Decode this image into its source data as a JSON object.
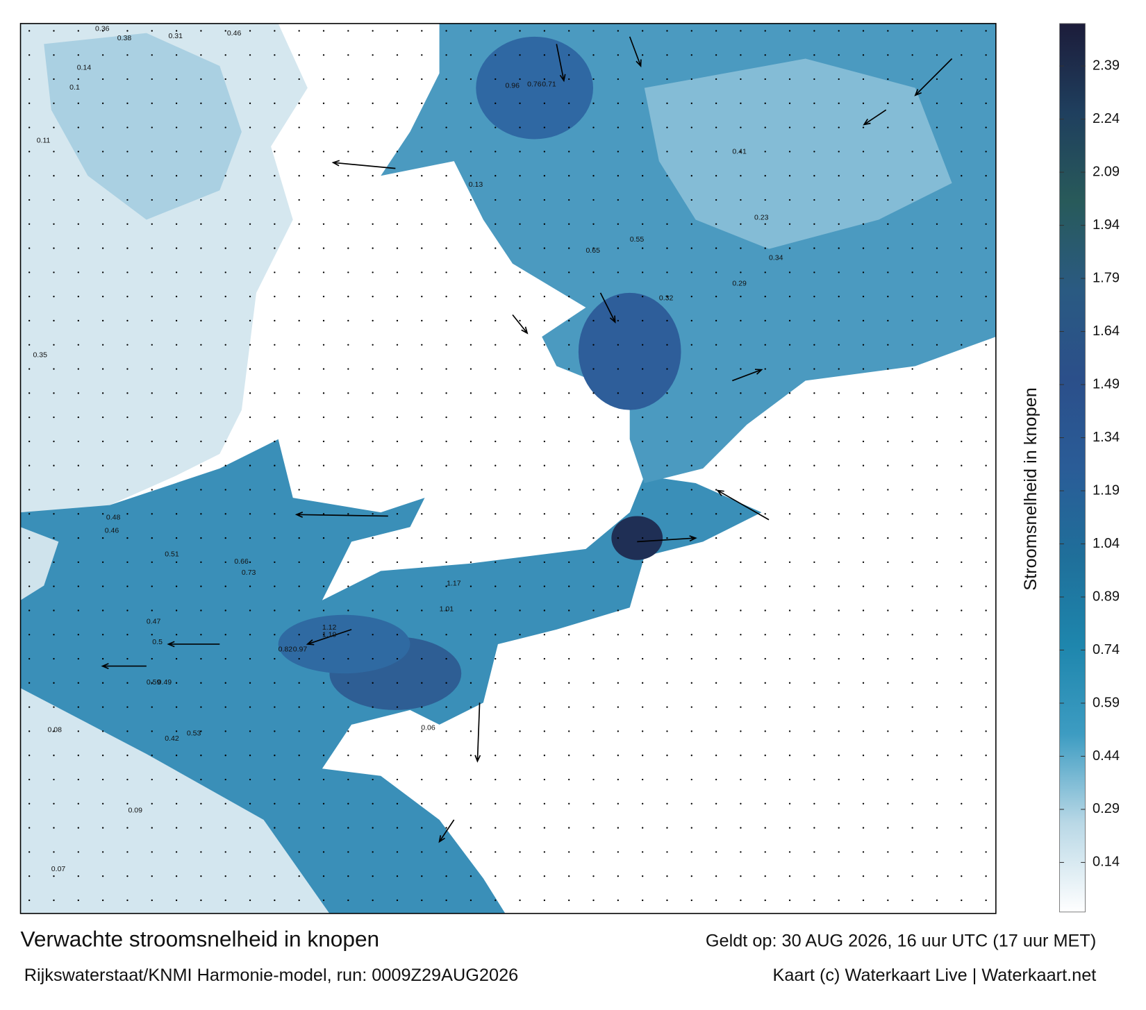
{
  "title": "Verwachte stroomsnelheid in knopen",
  "subtitle": "Rijkswaterstaat/KNMI Harmonie-model, run: 0009Z29AUG2026",
  "valid": "Geldt op: 30 AUG 2026, 16 uur UTC (17 uur MET)",
  "credit": "Kaart (c) Waterkaart Live | Waterkaart.net",
  "colorbar": {
    "label": "Stroomsnelheid in knopen",
    "lim": [
      0,
      2.51
    ],
    "ticks": [
      0.14,
      0.29,
      0.44,
      0.59,
      0.74,
      0.89,
      1.04,
      1.19,
      1.34,
      1.49,
      1.64,
      1.79,
      1.94,
      2.09,
      2.24,
      2.39
    ],
    "colors": [
      "#ffffff",
      "#b9d8e6",
      "#3d9cc2",
      "#1e86ad",
      "#1f6f9a",
      "#2a5c97",
      "#2b4f8a",
      "#2a5a82",
      "#285a5a",
      "#1f3f5e",
      "#1c1c3a"
    ]
  },
  "map": {
    "labels": [
      0.36,
      0.38,
      0.31,
      0.46,
      0.14,
      0.1,
      0.11,
      0.35,
      0.48,
      0.46,
      0.51,
      0.47,
      0.5,
      0.59,
      0.53,
      0.49,
      0.42,
      0.08,
      0.07,
      0.09,
      0.96,
      0.76,
      0.71,
      0.65,
      0.55,
      0.41,
      0.23,
      0.34,
      0.29,
      0.32,
      1.17,
      1.01,
      1.12,
      0.82,
      0.97,
      1.19,
      0.73,
      0.66,
      0.06,
      0.13
    ]
  }
}
